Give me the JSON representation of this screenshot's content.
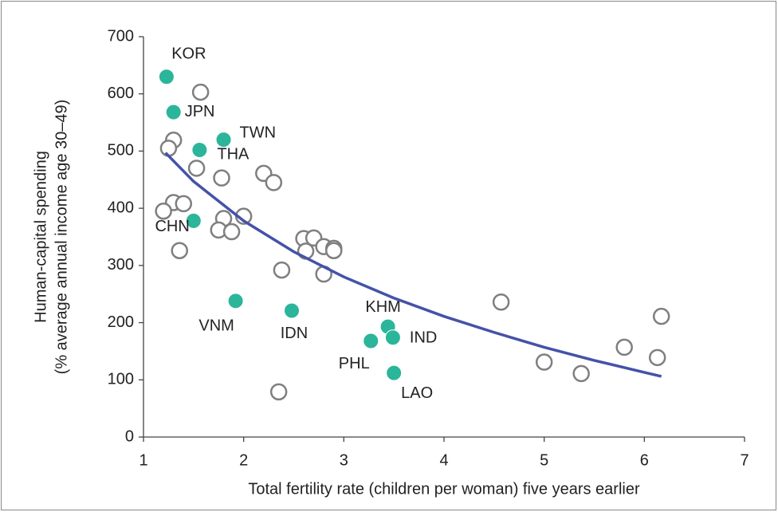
{
  "chart_data": {
    "type": "scatter",
    "xlabel": "Total fertility rate (children per woman) five years earlier",
    "ylabel": [
      "Human-capital spending",
      "(% average annual income age 30–49)"
    ],
    "xlim": [
      1,
      7
    ],
    "xticks": [
      1,
      2,
      3,
      4,
      5,
      6,
      7
    ],
    "ylim": [
      0,
      700
    ],
    "yticks": [
      0,
      100,
      200,
      300,
      400,
      500,
      600,
      700
    ],
    "series": [
      {
        "color": "#7f7f7f",
        "filled": false,
        "x": [
          1.57,
          1.3,
          1.25,
          1.53,
          1.78,
          2.2,
          2.3,
          1.3,
          1.4,
          1.2,
          1.8,
          2.0,
          1.75,
          1.88,
          1.36,
          2.6,
          2.7,
          2.62,
          2.8,
          2.9,
          2.9,
          2.38,
          2.8,
          2.35,
          4.57,
          6.17,
          5.8,
          6.13,
          5.0,
          5.37
        ],
        "values": [
          603,
          519,
          505,
          470,
          453,
          461,
          445,
          410,
          408,
          395,
          382,
          386,
          362,
          359,
          326,
          347,
          348,
          325,
          333,
          330,
          326,
          292,
          285,
          79,
          236,
          211,
          157,
          139,
          131,
          111
        ]
      },
      {
        "color": "#2bb59a",
        "filled": true,
        "labels": [
          "KOR",
          "JPN",
          "TWN",
          "THA",
          "CHN",
          "VNM",
          "IDN",
          "KHM",
          "IND",
          "PHL",
          "LAO"
        ],
        "x": [
          1.23,
          1.3,
          1.8,
          1.56,
          1.5,
          1.92,
          2.48,
          3.44,
          3.49,
          3.27,
          3.5
        ],
        "values": [
          630,
          568,
          520,
          502,
          378,
          238,
          221,
          193,
          174,
          168,
          112
        ]
      },
      {
        "color": "#4452a8",
        "line": true,
        "x": [
          1.22,
          1.5,
          2,
          2.5,
          3,
          3.5,
          4,
          4.5,
          5,
          5.5,
          6,
          6.17
        ],
        "values": [
          497,
          447,
          378,
          324,
          280,
          243,
          211,
          183,
          157,
          134,
          113,
          106
        ]
      }
    ]
  }
}
